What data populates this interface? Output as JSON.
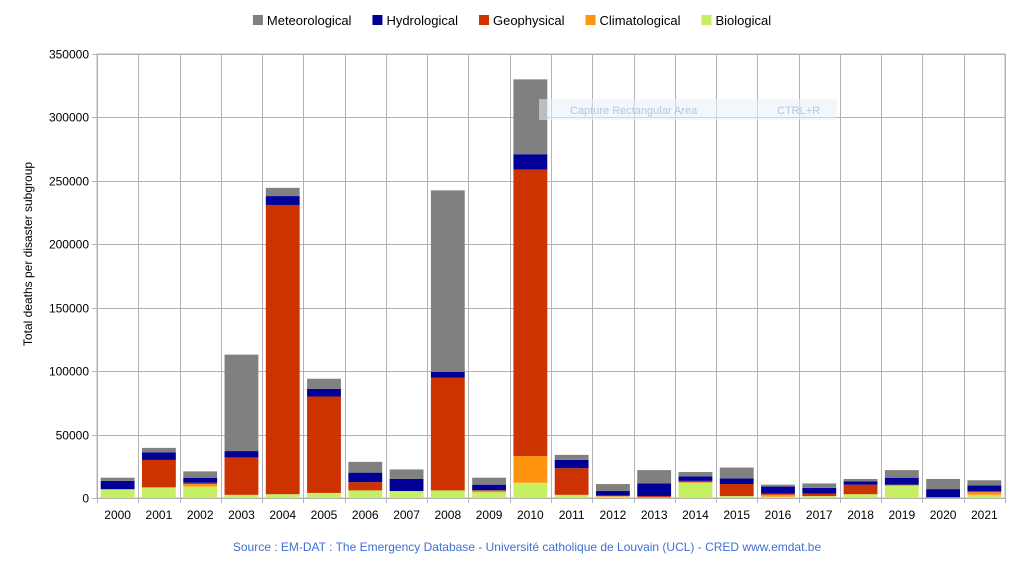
{
  "chart_data": {
    "type": "bar",
    "stacked": true,
    "title": "",
    "xlabel": "",
    "ylabel": "Total deaths per disaster subgroup",
    "ylim": [
      0,
      350000
    ],
    "yticks": [
      0,
      50000,
      100000,
      150000,
      200000,
      250000,
      300000,
      350000
    ],
    "ytick_labels": [
      "0",
      "50000",
      "100000",
      "150000",
      "200000",
      "250000",
      "300000",
      "350000"
    ],
    "grid": true,
    "legend_position": "top-center",
    "categories": [
      "2000",
      "2001",
      "2002",
      "2003",
      "2004",
      "2005",
      "2006",
      "2007",
      "2008",
      "2009",
      "2010",
      "2011",
      "2012",
      "2013",
      "2014",
      "2015",
      "2016",
      "2017",
      "2018",
      "2019",
      "2020",
      "2021"
    ],
    "series": [
      {
        "name": "Biological",
        "color": "#c6f064",
        "values": [
          6500,
          8000,
          9000,
          2500,
          3000,
          4000,
          6000,
          5500,
          6000,
          4500,
          12000,
          2500,
          1000,
          500,
          12000,
          1500,
          1000,
          1500,
          3000,
          10000,
          500,
          2500
        ]
      },
      {
        "name": "Climatological",
        "color": "#ff950e",
        "values": [
          500,
          500,
          2000,
          0,
          0,
          0,
          0,
          0,
          0,
          1500,
          21000,
          0,
          500,
          0,
          500,
          0,
          1500,
          0,
          0,
          0,
          0,
          2000
        ]
      },
      {
        "name": "Geophysical",
        "color": "#cc3300",
        "values": [
          0,
          21500,
          1000,
          29500,
          228000,
          76000,
          6500,
          0,
          89000,
          0,
          226000,
          21000,
          500,
          1000,
          1000,
          9500,
          1000,
          2000,
          7500,
          500,
          0,
          1000
        ]
      },
      {
        "name": "Hydrological",
        "color": "#000099",
        "values": [
          6500,
          6000,
          4000,
          5000,
          7000,
          6000,
          7500,
          9500,
          4500,
          4500,
          12000,
          6500,
          3500,
          10000,
          3500,
          4500,
          5500,
          4500,
          2500,
          5500,
          6500,
          4500
        ]
      },
      {
        "name": "Meteorological",
        "color": "#808080",
        "values": [
          2500,
          3500,
          5000,
          76000,
          6500,
          8000,
          8500,
          7500,
          143000,
          5500,
          59000,
          4000,
          5500,
          10500,
          3500,
          8500,
          1500,
          3500,
          2000,
          6000,
          8000,
          4000
        ]
      }
    ],
    "legend_order": [
      "Meteorological",
      "Hydrological",
      "Geophysical",
      "Climatological",
      "Biological"
    ],
    "source": "Source : EM-DAT : The Emergency Database - Université catholique de Louvain (UCL) - CRED  www.emdat.be"
  },
  "overlay": {
    "label": "Capture Rectangular Area",
    "shortcut": "CTRL+R"
  }
}
